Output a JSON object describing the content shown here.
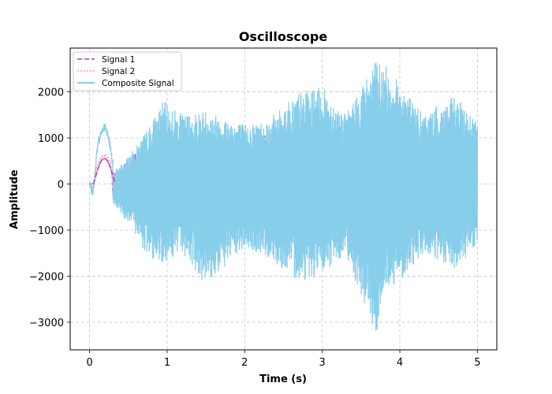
{
  "chart_data": {
    "type": "line",
    "title": "Oscilloscope",
    "title_color": "#8b0000",
    "xlabel": "Time (s)",
    "ylabel": "Amplitude",
    "xlim": [
      -0.25,
      5.25
    ],
    "ylim": [
      -3600,
      2950
    ],
    "xticks": [
      0,
      1,
      2,
      3,
      4,
      5
    ],
    "xtick_labels": [
      "0",
      "1",
      "2",
      "3",
      "4",
      "5"
    ],
    "yticks": [
      -3000,
      -2000,
      -1000,
      0,
      1000,
      2000
    ],
    "ytick_labels": [
      "−3000",
      "−2000",
      "−1000",
      "0",
      "1000",
      "2000"
    ],
    "grid": true,
    "legend_position": "top-left",
    "series": [
      {
        "name": "Signal 1",
        "color": "#b040b8",
        "style": "dashed",
        "peak_near_start": 550,
        "envelope": {
          "t": [
            0.0,
            0.1,
            0.18,
            0.25,
            0.3,
            0.6,
            1.0,
            1.5,
            2.0,
            2.5,
            3.0,
            3.5,
            3.8,
            4.0,
            4.5,
            5.0
          ],
          "amp": [
            0,
            0,
            0,
            0,
            250,
            700,
            1000,
            1100,
            900,
            1200,
            1300,
            1000,
            1600,
            1500,
            1200,
            1000
          ]
        }
      },
      {
        "name": "Signal 2",
        "color": "#ff9ec4",
        "style": "dotted",
        "peak_near_start": 620,
        "envelope": {
          "t": [
            0.0,
            0.1,
            0.18,
            0.25,
            0.3,
            0.6,
            1.0,
            1.5,
            2.0,
            2.5,
            3.0,
            3.5,
            3.8,
            4.0,
            4.5,
            5.0
          ],
          "amp": [
            0,
            0,
            0,
            0,
            250,
            700,
            1000,
            1100,
            900,
            1200,
            1300,
            1000,
            1600,
            1500,
            1200,
            1000
          ]
        }
      },
      {
        "name": "Composite Signal",
        "color": "#87ceeb",
        "style": "solid",
        "peak_near_start": 1230,
        "envelope_top": {
          "t": [
            0.0,
            0.3,
            0.6,
            0.75,
            0.95,
            1.2,
            1.5,
            2.0,
            2.3,
            2.7,
            3.0,
            3.3,
            3.7,
            3.8,
            4.0,
            4.3,
            4.7,
            5.0
          ],
          "v": [
            0,
            200,
            800,
            1200,
            1800,
            1500,
            1600,
            1300,
            1400,
            2000,
            2100,
            1500,
            2700,
            2600,
            2200,
            1500,
            1900,
            1400
          ]
        },
        "envelope_bottom": {
          "t": [
            0.0,
            0.3,
            0.6,
            0.75,
            0.95,
            1.2,
            1.5,
            2.0,
            2.3,
            2.7,
            3.0,
            3.3,
            3.7,
            3.8,
            4.0,
            4.3,
            4.7,
            5.0
          ],
          "v": [
            -300,
            -400,
            -1100,
            -1600,
            -1700,
            -1500,
            -2200,
            -1400,
            -1600,
            -2100,
            -2000,
            -1500,
            -3350,
            -2300,
            -2100,
            -1500,
            -1900,
            -1300
          ]
        }
      }
    ]
  }
}
